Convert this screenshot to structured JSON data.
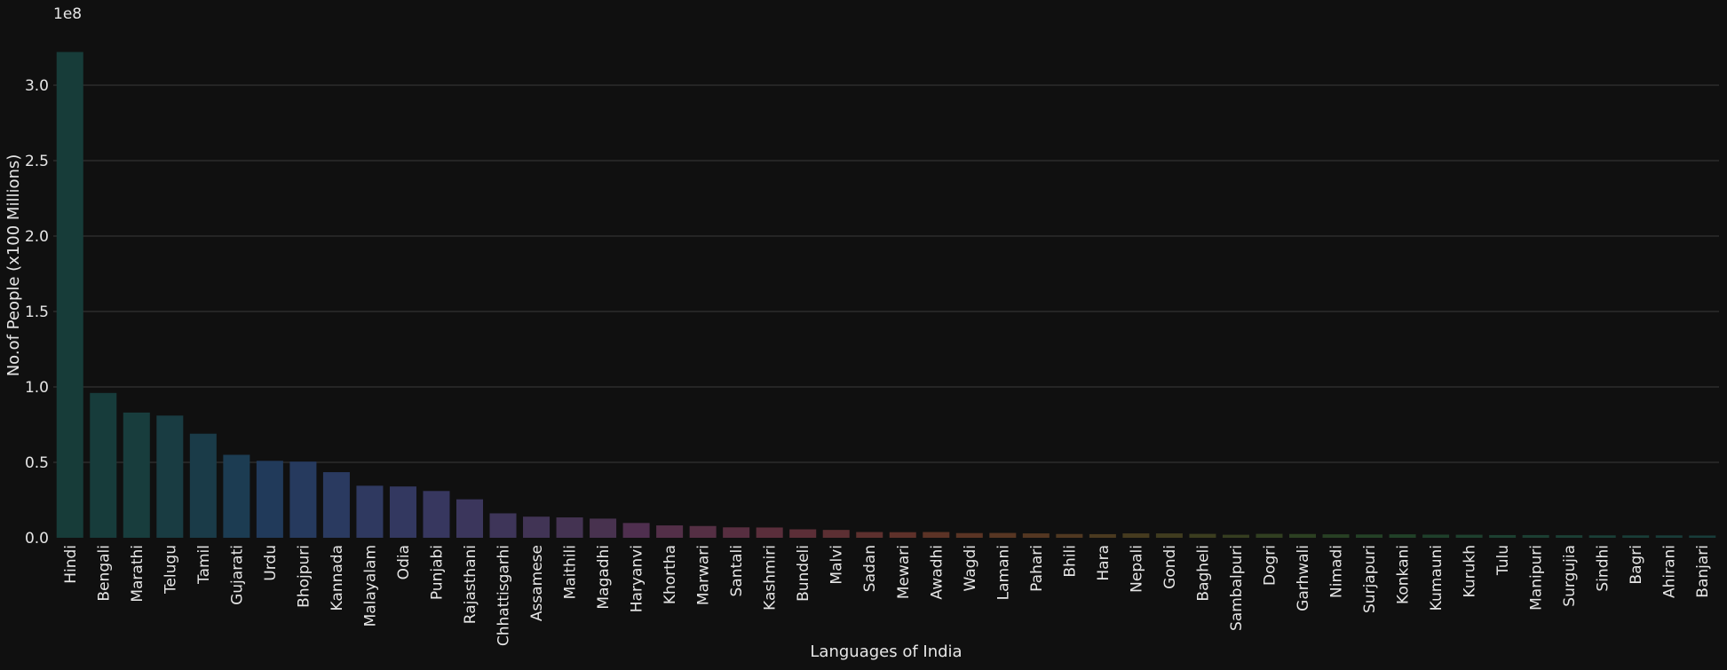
{
  "colors": {
    "background": "#101010",
    "grid": "#3a3a3a",
    "text": "#e6e6e6"
  },
  "chart_data": {
    "type": "bar",
    "xlabel": "Languages of India",
    "ylabel": "No.of People (x100 Millions)",
    "offset_text": "1e8",
    "ylim": [
      0,
      3.3
    ],
    "ytick_values": [
      0.0,
      0.5,
      1.0,
      1.5,
      2.0,
      2.5,
      3.0
    ],
    "ytick_labels": [
      "0.0",
      "0.5",
      "1.0",
      "1.5",
      "2.0",
      "2.5",
      "3.0"
    ],
    "grid": "horizontal",
    "categories": [
      "Hindi",
      "Bengali",
      "Marathi",
      "Telugu",
      "Tamil",
      "Gujarati",
      "Urdu",
      "Bhojpuri",
      "Kannada",
      "Malayalam",
      "Odia",
      "Punjabi",
      "Rajasthani",
      "Chhattisgarhi",
      "Assamese",
      "Maithili",
      "Magadhi",
      "Haryanvi",
      "Khortha",
      "Marwari",
      "Santali",
      "Kashmiri",
      "Bundeli",
      "Malvi",
      "Sadan",
      "Mewari",
      "Awadhi",
      "Wagdi",
      "Lamani",
      "Pahari",
      "Bhili",
      "Hara",
      "Nepali",
      "Gondi",
      "Bagheli",
      "Sambalpuri",
      "Dogri",
      "Garhwali",
      "Nimadi",
      "Surjapuri",
      "Konkani",
      "Kumauni",
      "Kurukh",
      "Tulu",
      "Manipuri",
      "Surgujia",
      "Sindhi",
      "Bagri",
      "Ahirani",
      "Banjari"
    ],
    "values": [
      3.22,
      0.96,
      0.83,
      0.81,
      0.69,
      0.55,
      0.51,
      0.505,
      0.435,
      0.345,
      0.34,
      0.31,
      0.255,
      0.162,
      0.14,
      0.135,
      0.127,
      0.098,
      0.082,
      0.078,
      0.069,
      0.068,
      0.056,
      0.052,
      0.038,
      0.037,
      0.038,
      0.031,
      0.032,
      0.029,
      0.025,
      0.024,
      0.029,
      0.029,
      0.026,
      0.02,
      0.026,
      0.025,
      0.023,
      0.022,
      0.023,
      0.021,
      0.02,
      0.018,
      0.018,
      0.017,
      0.016,
      0.016,
      0.016,
      0.015
    ],
    "bar_colors": [
      "#173c39",
      "#173c3b",
      "#183d3d",
      "#193c42",
      "#1a3b48",
      "#1c3c52",
      "#213a5a",
      "#263a5e",
      "#2a3a60",
      "#2f3960",
      "#333860",
      "#37375f",
      "#3b365c",
      "#3e3559",
      "#413455",
      "#443352",
      "#48324f",
      "#4f2f4f",
      "#532f48",
      "#552f44",
      "#572e40",
      "#5a2e3b",
      "#5c2e37",
      "#5c2f33",
      "#5d302e",
      "#5e312a",
      "#5c3326",
      "#5a3424",
      "#573623",
      "#543722",
      "#503821",
      "#4b3a20",
      "#463b1f",
      "#403c1f",
      "#3b3d1f",
      "#363e20",
      "#313f21",
      "#2c4022",
      "#284024",
      "#244126",
      "#214128",
      "#1f402b",
      "#1e402e",
      "#1d4031",
      "#1c3f33",
      "#1b3f35",
      "#1a3f37",
      "#193e38",
      "#193d39",
      "#183d3a"
    ]
  }
}
